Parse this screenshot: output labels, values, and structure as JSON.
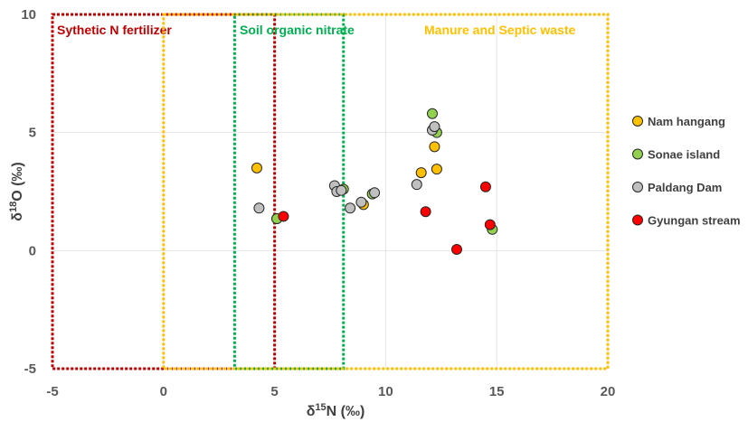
{
  "chart_data": {
    "type": "scatter",
    "title": "",
    "xlabel": "δ15N (‰)",
    "ylabel": "δ18O (‰)",
    "xlabel_parts": {
      "prefix": "δ",
      "sup": "15",
      "suffix": "N (‰)"
    },
    "ylabel_parts": {
      "prefix": "δ",
      "sup": "18",
      "suffix": "O (‰)"
    },
    "xlim": [
      -5,
      20
    ],
    "ylim": [
      -5,
      10
    ],
    "xticks": [
      "-5",
      "0",
      "5",
      "10",
      "15",
      "20"
    ],
    "yticks": [
      "-5",
      "0",
      "5",
      "10"
    ],
    "grid": true,
    "legend_position": "right",
    "regions": [
      {
        "label": "Sythetic N fertilizer",
        "x": [
          -5,
          5
        ],
        "y": [
          -5,
          10
        ],
        "color": "#c00000"
      },
      {
        "label": "Soil organic nitrate",
        "x": [
          3.2,
          8.1
        ],
        "y": [
          -5,
          10
        ],
        "color": "#00b050"
      },
      {
        "label": "Manure and Septic waste",
        "x": [
          0,
          20
        ],
        "y": [
          -5,
          10
        ],
        "color": "#ffc000"
      }
    ],
    "series": [
      {
        "name": "Nam hangang",
        "color": "#ffc000",
        "points": [
          [
            4.2,
            3.5
          ],
          [
            12.2,
            4.4
          ],
          [
            12.3,
            3.45
          ],
          [
            11.6,
            3.3
          ],
          [
            9.0,
            1.95
          ],
          [
            5.1,
            1.35
          ]
        ]
      },
      {
        "name": "Sonae island",
        "color": "#92d050",
        "points": [
          [
            12.1,
            5.8
          ],
          [
            12.3,
            5.0
          ],
          [
            8.1,
            2.6
          ],
          [
            9.4,
            2.4
          ],
          [
            5.1,
            1.35
          ],
          [
            14.8,
            0.9
          ]
        ]
      },
      {
        "name": "Paldang Dam",
        "color": "#bfbfbf",
        "points": [
          [
            4.3,
            1.8
          ],
          [
            7.7,
            2.75
          ],
          [
            7.8,
            2.5
          ],
          [
            8.0,
            2.55
          ],
          [
            8.4,
            1.8
          ],
          [
            8.9,
            2.05
          ],
          [
            9.5,
            2.45
          ],
          [
            11.4,
            2.8
          ],
          [
            12.1,
            5.1
          ],
          [
            12.2,
            5.25
          ]
        ]
      },
      {
        "name": "Gyungan stream",
        "color": "#ff0000",
        "points": [
          [
            5.4,
            1.45
          ],
          [
            11.8,
            1.65
          ],
          [
            14.5,
            2.7
          ],
          [
            14.7,
            1.1
          ],
          [
            13.2,
            0.05
          ]
        ]
      }
    ]
  }
}
